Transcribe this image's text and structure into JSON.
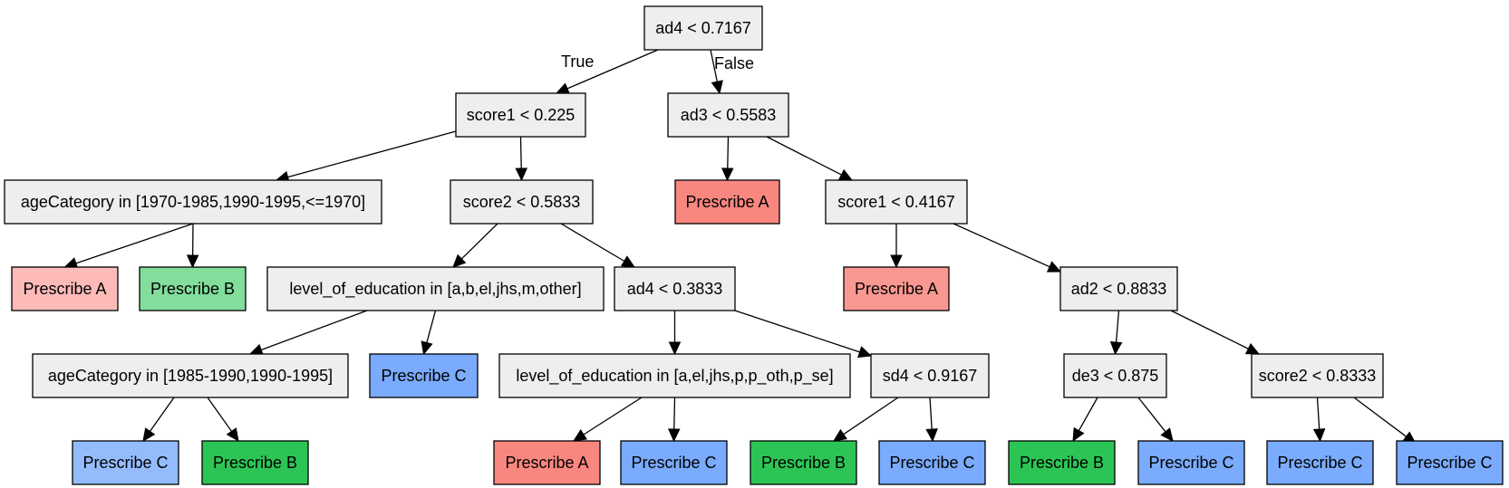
{
  "colors": {
    "split": "#eeeeee",
    "prescribe_a_light": "#fcbbb8",
    "prescribe_a": "#f8877f",
    "prescribe_a_mid": "#f99891",
    "prescribe_b_light": "#82de9b",
    "prescribe_b": "#2cc555",
    "prescribe_c_light": "#94bcfd",
    "prescribe_c": "#7aabfc"
  },
  "nodes": [
    {
      "id": "n0",
      "label": "ad4 < 0.7167",
      "fill": "split"
    },
    {
      "id": "n1",
      "label": "score1 < 0.225",
      "fill": "split"
    },
    {
      "id": "n2",
      "label": "ad3 < 0.5583",
      "fill": "split"
    },
    {
      "id": "n3",
      "label": "ageCategory in [1970-1985,1990-1995,<=1970]",
      "fill": "split"
    },
    {
      "id": "n4",
      "label": "score2 < 0.5833",
      "fill": "split"
    },
    {
      "id": "n5",
      "label": "Prescribe A",
      "fill": "prescribe_a"
    },
    {
      "id": "n6",
      "label": "score1 < 0.4167",
      "fill": "split"
    },
    {
      "id": "n7",
      "label": "Prescribe A",
      "fill": "prescribe_a_light"
    },
    {
      "id": "n8",
      "label": "Prescribe B",
      "fill": "prescribe_b_light"
    },
    {
      "id": "n9",
      "label": "level_of_education in [a,b,el,jhs,m,other]",
      "fill": "split"
    },
    {
      "id": "n10",
      "label": "ad4 < 0.3833",
      "fill": "split"
    },
    {
      "id": "n11",
      "label": "Prescribe A",
      "fill": "prescribe_a_mid"
    },
    {
      "id": "n12",
      "label": "ad2 < 0.8833",
      "fill": "split"
    },
    {
      "id": "n13",
      "label": "ageCategory in [1985-1990,1990-1995]",
      "fill": "split"
    },
    {
      "id": "n14",
      "label": "Prescribe C",
      "fill": "prescribe_c"
    },
    {
      "id": "n15",
      "label": "level_of_education in [a,el,jhs,p,p_oth,p_se]",
      "fill": "split"
    },
    {
      "id": "n16",
      "label": "sd4 < 0.9167",
      "fill": "split"
    },
    {
      "id": "n17",
      "label": "de3 < 0.875",
      "fill": "split"
    },
    {
      "id": "n18",
      "label": "score2 < 0.8333",
      "fill": "split"
    },
    {
      "id": "n19",
      "label": "Prescribe C",
      "fill": "prescribe_c_light"
    },
    {
      "id": "n20",
      "label": "Prescribe B",
      "fill": "prescribe_b"
    },
    {
      "id": "n21",
      "label": "Prescribe A",
      "fill": "prescribe_a"
    },
    {
      "id": "n22",
      "label": "Prescribe C",
      "fill": "prescribe_c"
    },
    {
      "id": "n23",
      "label": "Prescribe B",
      "fill": "prescribe_b"
    },
    {
      "id": "n24",
      "label": "Prescribe C",
      "fill": "prescribe_c"
    },
    {
      "id": "n25",
      "label": "Prescribe B",
      "fill": "prescribe_b"
    },
    {
      "id": "n26",
      "label": "Prescribe C",
      "fill": "prescribe_c"
    },
    {
      "id": "n27",
      "label": "Prescribe C",
      "fill": "prescribe_c"
    },
    {
      "id": "n28",
      "label": "Prescribe C",
      "fill": "prescribe_c"
    }
  ],
  "edges": [
    {
      "from": "n0",
      "to": "n1",
      "label": "True"
    },
    {
      "from": "n0",
      "to": "n2",
      "label": "False"
    },
    {
      "from": "n1",
      "to": "n3"
    },
    {
      "from": "n1",
      "to": "n4"
    },
    {
      "from": "n2",
      "to": "n5"
    },
    {
      "from": "n2",
      "to": "n6"
    },
    {
      "from": "n3",
      "to": "n7"
    },
    {
      "from": "n3",
      "to": "n8"
    },
    {
      "from": "n4",
      "to": "n9"
    },
    {
      "from": "n4",
      "to": "n10"
    },
    {
      "from": "n6",
      "to": "n11"
    },
    {
      "from": "n6",
      "to": "n12"
    },
    {
      "from": "n9",
      "to": "n13"
    },
    {
      "from": "n9",
      "to": "n14"
    },
    {
      "from": "n10",
      "to": "n15"
    },
    {
      "from": "n10",
      "to": "n16"
    },
    {
      "from": "n12",
      "to": "n17"
    },
    {
      "from": "n12",
      "to": "n18"
    },
    {
      "from": "n13",
      "to": "n19"
    },
    {
      "from": "n13",
      "to": "n20"
    },
    {
      "from": "n15",
      "to": "n21"
    },
    {
      "from": "n15",
      "to": "n22"
    },
    {
      "from": "n16",
      "to": "n23"
    },
    {
      "from": "n16",
      "to": "n24"
    },
    {
      "from": "n17",
      "to": "n25"
    },
    {
      "from": "n17",
      "to": "n26"
    },
    {
      "from": "n18",
      "to": "n27"
    },
    {
      "from": "n18",
      "to": "n28"
    }
  ]
}
